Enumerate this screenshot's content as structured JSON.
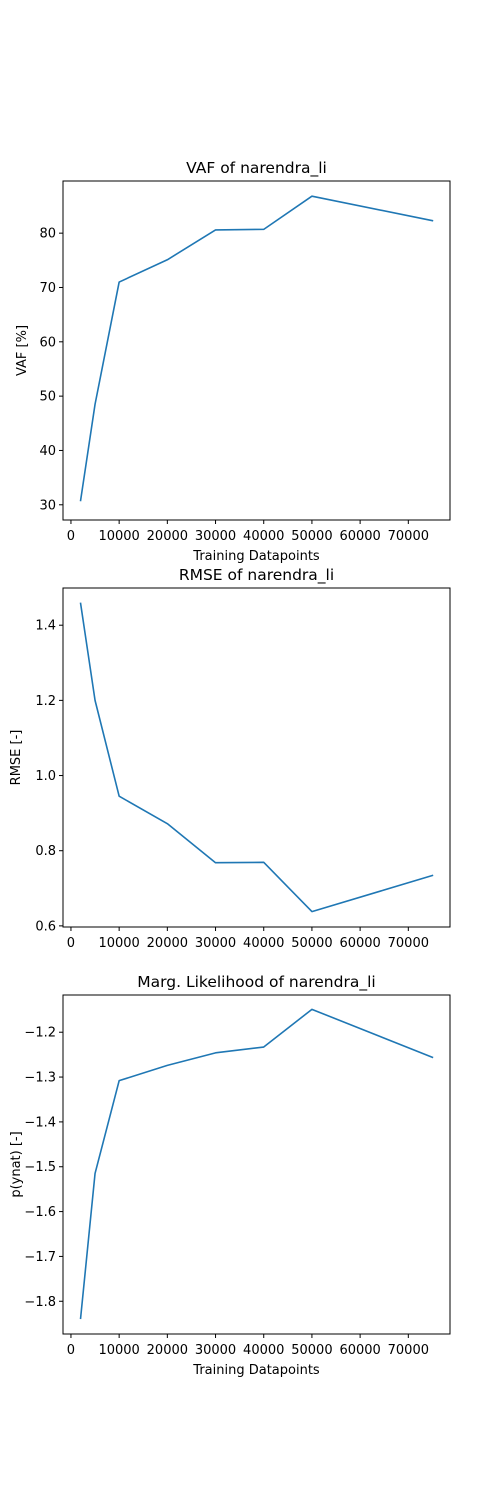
{
  "chart_data": [
    {
      "type": "line",
      "title": "VAF of narendra_li",
      "xlabel": "Training Datapoints",
      "ylabel": "VAF [%]",
      "xlim": [
        -1650,
        78650
      ],
      "ylim": [
        27.2,
        89.6
      ],
      "xticks": [
        0,
        10000,
        20000,
        30000,
        40000,
        50000,
        60000,
        70000
      ],
      "xtick_labels": [
        "0",
        "10000",
        "20000",
        "30000",
        "40000",
        "50000",
        "60000",
        "70000"
      ],
      "yticks": [
        30,
        40,
        50,
        60,
        70,
        80
      ],
      "ytick_labels": [
        "30",
        "40",
        "50",
        "60",
        "70",
        "80"
      ],
      "grid": false,
      "legend": "none",
      "series": [
        {
          "color": "#1f77b4",
          "x": [
            2000,
            5000,
            10000,
            20000,
            30000,
            40000,
            50000,
            75000
          ],
          "y": [
            30.8,
            48.5,
            71.0,
            75.1,
            80.6,
            80.7,
            86.8,
            82.3
          ]
        }
      ]
    },
    {
      "type": "line",
      "title": "RMSE of narendra_li",
      "xlabel": "",
      "ylabel": "RMSE [-]",
      "xlim": [
        -1650,
        78650
      ],
      "ylim": [
        0.597,
        1.499
      ],
      "xticks": [
        0,
        10000,
        20000,
        30000,
        40000,
        50000,
        60000,
        70000
      ],
      "xtick_labels": [
        "0",
        "10000",
        "20000",
        "30000",
        "40000",
        "50000",
        "60000",
        "70000"
      ],
      "yticks": [
        0.6,
        0.8,
        1.0,
        1.2,
        1.4
      ],
      "ytick_labels": [
        "0.6",
        "0.8",
        "1.0",
        "1.2",
        "1.4"
      ],
      "grid": false,
      "legend": "none",
      "series": [
        {
          "color": "#1f77b4",
          "x": [
            2000,
            5000,
            10000,
            20000,
            30000,
            40000,
            50000,
            75000
          ],
          "y": [
            1.458,
            1.2,
            0.945,
            0.872,
            0.768,
            0.769,
            0.638,
            0.734
          ]
        }
      ]
    },
    {
      "type": "line",
      "title": "Marg. Likelihood of narendra_li",
      "xlabel": "Training Datapoints",
      "ylabel": "p(ynat) [-]",
      "xlim": [
        -1650,
        78650
      ],
      "ylim": [
        -1.873,
        -1.117
      ],
      "xticks": [
        0,
        10000,
        20000,
        30000,
        40000,
        50000,
        60000,
        70000
      ],
      "xtick_labels": [
        "0",
        "10000",
        "20000",
        "30000",
        "40000",
        "50000",
        "60000",
        "70000"
      ],
      "yticks": [
        -1.8,
        -1.7,
        -1.6,
        -1.5,
        -1.4,
        -1.3,
        -1.2
      ],
      "ytick_labels": [
        "−1.8",
        "−1.7",
        "−1.6",
        "−1.5",
        "−1.4",
        "−1.3",
        "−1.2"
      ],
      "grid": false,
      "legend": "none",
      "series": [
        {
          "color": "#1f77b4",
          "x": [
            2000,
            5000,
            10000,
            20000,
            30000,
            40000,
            50000,
            75000
          ],
          "y": [
            -1.838,
            -1.515,
            -1.308,
            -1.274,
            -1.246,
            -1.233,
            -1.149,
            -1.256
          ]
        }
      ]
    }
  ]
}
